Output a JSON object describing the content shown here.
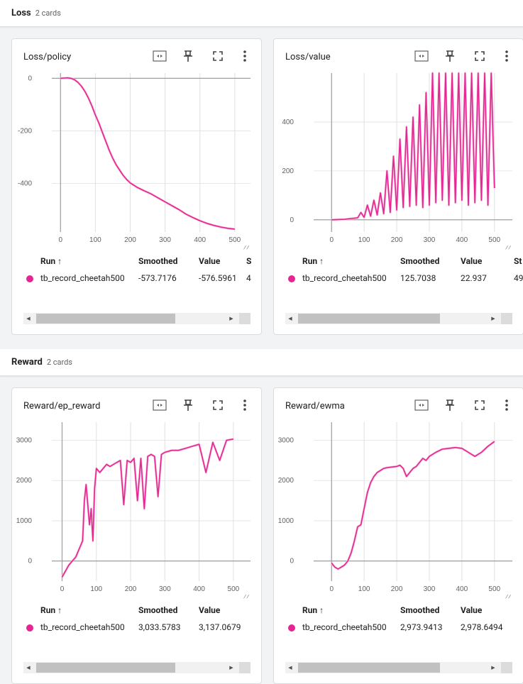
{
  "colors": {
    "series": "#e52592",
    "series_faint": "#f6bfdc",
    "axis": "#9e9e9e",
    "grid": "#e0e0e0",
    "tick_text": "#616161"
  },
  "groups": [
    {
      "title": "Loss",
      "count": "2 cards"
    },
    {
      "title": "Reward",
      "count": "2 cards"
    }
  ],
  "icons": {
    "fit": "fit-domain-icon",
    "pin": "pin-icon",
    "fullscreen": "fullscreen-icon",
    "more": "more-vert-icon"
  },
  "table": {
    "run_header": "Run ↑",
    "smoothed_header": "Smoothed",
    "value_header": "Value",
    "step_header_partial": "St",
    "step_header_partial_short": "S"
  },
  "cards": [
    {
      "title": "Loss/policy",
      "run": "tb_record_cheetah500",
      "smoothed": "-573.7176",
      "value": "-576.5961",
      "step_partial": "4",
      "chart_data": {
        "type": "line",
        "title": "",
        "xlabel": "",
        "ylabel": "",
        "x_ticks": [
          "0",
          "100",
          "200",
          "300",
          "400",
          "500"
        ],
        "y_ticks": [
          "0",
          "-200",
          "-400"
        ],
        "xlim": [
          -25,
          545
        ],
        "ylim": [
          -585,
          20
        ],
        "series": [
          {
            "x": [
              0,
              10,
              20,
              30,
              40,
              50,
              60,
              70,
              80,
              90,
              100,
              110,
              120,
              130,
              140,
              150,
              160,
              170,
              180,
              190,
              200,
              220,
              240,
              260,
              280,
              300,
              320,
              340,
              360,
              380,
              400,
              420,
              440,
              460,
              480,
              500
            ],
            "y": [
              0,
              1,
              2,
              0,
              -5,
              -15,
              -30,
              -50,
              -75,
              -105,
              -140,
              -170,
              -205,
              -240,
              -275,
              -305,
              -330,
              -350,
              -370,
              -385,
              -398,
              -415,
              -428,
              -440,
              -455,
              -470,
              -485,
              -500,
              -517,
              -530,
              -542,
              -552,
              -560,
              -566,
              -571,
              -574
            ]
          }
        ]
      }
    },
    {
      "title": "Loss/value",
      "run": "tb_record_cheetah500",
      "smoothed": "125.7038",
      "value": "22.937",
      "step_partial": "49",
      "chart_data": {
        "type": "line",
        "title": "",
        "xlabel": "",
        "ylabel": "",
        "x_ticks": [
          "0",
          "100",
          "200",
          "300",
          "400",
          "500"
        ],
        "y_ticks": [
          "0",
          "200",
          "400"
        ],
        "xlim": [
          -55,
          555
        ],
        "ylim": [
          -50,
          600
        ],
        "series": [
          {
            "x": [
              0,
              20,
              40,
              60,
              80,
              90,
              100,
              110,
              120,
              130,
              140,
              150,
              160,
              170,
              180,
              190,
              200,
              210,
              220,
              230,
              240,
              250,
              260,
              270,
              280,
              290,
              300,
              310,
              320,
              330,
              340,
              350,
              360,
              370,
              380,
              390,
              400,
              410,
              420,
              430,
              440,
              450,
              460,
              470,
              480,
              490,
              500
            ],
            "y": [
              0,
              1,
              2,
              5,
              8,
              30,
              10,
              60,
              15,
              80,
              20,
              110,
              25,
              200,
              30,
              260,
              40,
              330,
              50,
              380,
              55,
              420,
              60,
              470,
              50,
              520,
              60,
              600,
              70,
              600,
              80,
              600,
              60,
              600,
              70,
              600,
              80,
              600,
              60,
              600,
              70,
              600,
              80,
              600,
              60,
              600,
              130
            ]
          }
        ]
      }
    },
    {
      "title": "Reward/ep_reward",
      "run": "tb_record_cheetah500",
      "smoothed": "3,033.5783",
      "value": "3,137.0679",
      "chart_data": {
        "type": "line",
        "title": "",
        "xlabel": "",
        "ylabel": "",
        "x_ticks": [
          "0",
          "100",
          "200",
          "300",
          "400",
          "500"
        ],
        "y_ticks": [
          "0",
          "1000",
          "2000",
          "3000"
        ],
        "xlim": [
          -30,
          550
        ],
        "ylim": [
          -500,
          3450
        ],
        "series": [
          {
            "x": [
              0,
              20,
              40,
              60,
              65,
              70,
              80,
              85,
              90,
              95,
              100,
              110,
              120,
              130,
              140,
              150,
              160,
              170,
              180,
              190,
              200,
              210,
              220,
              230,
              240,
              250,
              260,
              270,
              280,
              290,
              300,
              320,
              340,
              360,
              380,
              400,
              420,
              440,
              460,
              480,
              500
            ],
            "y": [
              -400,
              -100,
              100,
              500,
              1500,
              1900,
              900,
              1300,
              500,
              1800,
              2300,
              2200,
              2300,
              2400,
              2350,
              2400,
              2450,
              2500,
              1400,
              2500,
              2450,
              2550,
              1500,
              2550,
              1300,
              2600,
              2650,
              2600,
              1600,
              2650,
              2700,
              2750,
              2750,
              2800,
              2850,
              2900,
              2200,
              2950,
              2500,
              3000,
              3030
            ]
          }
        ]
      }
    },
    {
      "title": "Reward/ewma",
      "run": "tb_record_cheetah500",
      "smoothed": "2,973.9413",
      "value": "2,978.6494",
      "chart_data": {
        "type": "line",
        "title": "",
        "xlabel": "",
        "ylabel": "",
        "x_ticks": [
          "0",
          "100",
          "200",
          "300",
          "400",
          "500"
        ],
        "y_ticks": [
          "0",
          "1000",
          "2000",
          "3000"
        ],
        "xlim": [
          -55,
          555
        ],
        "ylim": [
          -500,
          3450
        ],
        "series": [
          {
            "x": [
              0,
              10,
              20,
              30,
              40,
              50,
              60,
              70,
              80,
              90,
              100,
              110,
              120,
              130,
              140,
              150,
              160,
              170,
              180,
              190,
              200,
              210,
              220,
              230,
              240,
              250,
              260,
              270,
              280,
              290,
              300,
              320,
              340,
              360,
              380,
              400,
              420,
              440,
              460,
              480,
              500
            ],
            "y": [
              -50,
              -150,
              -200,
              -150,
              -100,
              0,
              200,
              500,
              850,
              900,
              1300,
              1700,
              1950,
              2100,
              2200,
              2250,
              2300,
              2320,
              2330,
              2340,
              2350,
              2380,
              2300,
              2100,
              2200,
              2300,
              2350,
              2450,
              2550,
              2500,
              2600,
              2700,
              2780,
              2800,
              2820,
              2800,
              2700,
              2600,
              2700,
              2850,
              2970
            ]
          }
        ]
      }
    }
  ]
}
